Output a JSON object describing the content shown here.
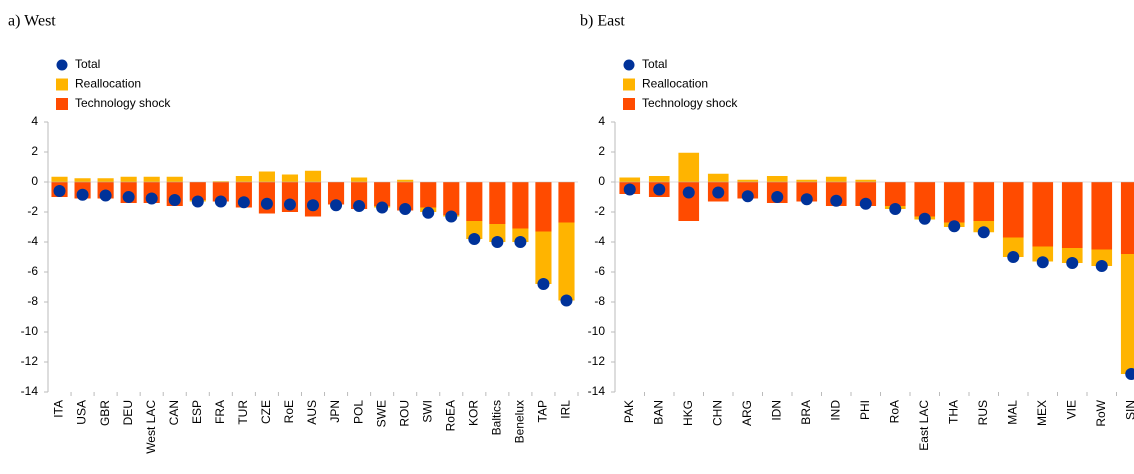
{
  "chart_data": [
    {
      "type": "bar",
      "title": "a) West",
      "stacked": true,
      "categories": [
        "ITA",
        "USA",
        "GBR",
        "DEU",
        "West LAC",
        "CAN",
        "ESP",
        "FRA",
        "TUR",
        "CZE",
        "RoE",
        "AUS",
        "JPN",
        "POL",
        "SWE",
        "ROU",
        "SWI",
        "RoEA",
        "KOR",
        "Baltics",
        "Benelux",
        "TAP",
        "IRL"
      ],
      "series": [
        {
          "name": "Total",
          "type": "scatter",
          "color": "#003299",
          "values": [
            -0.6,
            -0.85,
            -0.9,
            -1.0,
            -1.1,
            -1.2,
            -1.3,
            -1.3,
            -1.35,
            -1.45,
            -1.5,
            -1.55,
            -1.55,
            -1.6,
            -1.7,
            -1.8,
            -2.05,
            -2.3,
            -3.8,
            -4.0,
            -4.0,
            -6.8,
            -7.9
          ]
        },
        {
          "name": "Reallocation",
          "type": "bar",
          "color": "#ffb400",
          "values": [
            0.35,
            0.25,
            0.25,
            0.35,
            0.35,
            0.35,
            -0.1,
            0.05,
            0.4,
            0.7,
            0.5,
            0.75,
            0,
            0.3,
            -0.1,
            0.15,
            -0.3,
            -0.1,
            -1.2,
            -1.2,
            -0.9,
            -3.5,
            -5.2
          ]
        },
        {
          "name": "Technology shock",
          "type": "bar",
          "color": "#ff4b00",
          "values": [
            -1.0,
            -1.1,
            -1.1,
            -1.4,
            -1.4,
            -1.6,
            -1.2,
            -1.3,
            -1.7,
            -2.1,
            -2.0,
            -2.3,
            -1.5,
            -1.8,
            -1.6,
            -1.9,
            -1.7,
            -2.2,
            -2.6,
            -2.8,
            -3.1,
            -3.3,
            -2.7
          ]
        }
      ],
      "ylim": [
        -14,
        4
      ],
      "yticks": [
        -14,
        -12,
        -10,
        -8,
        -6,
        -4,
        -2,
        0,
        2,
        4
      ]
    },
    {
      "type": "bar",
      "title": "b) East",
      "stacked": true,
      "categories": [
        "PAK",
        "BAN",
        "HKG",
        "CHN",
        "ARG",
        "IDN",
        "BRA",
        "IND",
        "PHI",
        "RoA",
        "East LAC",
        "THA",
        "RUS",
        "MAL",
        "MEX",
        "VIE",
        "RoW",
        "SIN"
      ],
      "series": [
        {
          "name": "Total",
          "type": "scatter",
          "color": "#003299",
          "values": [
            -0.5,
            -0.5,
            -0.7,
            -0.7,
            -0.95,
            -1.0,
            -1.15,
            -1.25,
            -1.45,
            -1.8,
            -2.45,
            -2.95,
            -3.35,
            -5.0,
            -5.35,
            -5.4,
            -5.6,
            -12.8
          ]
        },
        {
          "name": "Reallocation",
          "type": "bar",
          "color": "#ffb400",
          "values": [
            0.3,
            0.4,
            1.95,
            0.55,
            0.15,
            0.4,
            0.15,
            0.35,
            0.15,
            -0.2,
            -0.2,
            -0.3,
            -0.75,
            -1.3,
            -1.0,
            -1.0,
            -1.1,
            -8.0
          ]
        },
        {
          "name": "Technology shock",
          "type": "bar",
          "color": "#ff4b00",
          "values": [
            -0.8,
            -1.0,
            -2.6,
            -1.3,
            -1.1,
            -1.4,
            -1.3,
            -1.6,
            -1.6,
            -1.6,
            -2.3,
            -2.7,
            -2.6,
            -3.7,
            -4.3,
            -4.4,
            -4.5,
            -4.8
          ]
        }
      ],
      "ylim": [
        -14,
        4
      ],
      "yticks": [
        -14,
        -12,
        -10,
        -8,
        -6,
        -4,
        -2,
        0,
        2,
        4
      ]
    }
  ]
}
